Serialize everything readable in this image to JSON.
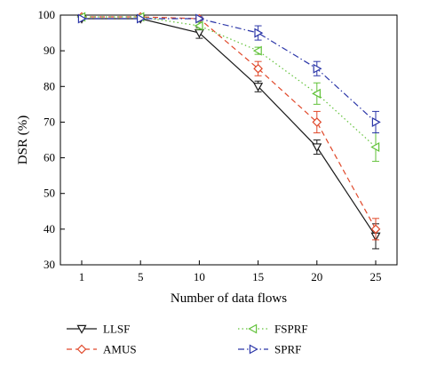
{
  "chart_data": {
    "type": "line",
    "xlabel": "Number of data flows",
    "ylabel": "DSR (%)",
    "categories": [
      "1",
      "5",
      "10",
      "15",
      "20",
      "25"
    ],
    "ylim": [
      30,
      100
    ],
    "yticks": [
      30,
      40,
      50,
      60,
      70,
      80,
      90,
      100
    ],
    "grid": false,
    "legend_placement": "bottom",
    "series": [
      {
        "name": "LLSF",
        "color": "#1a1a1a",
        "dash": "solid",
        "marker": "triangle-down",
        "values": [
          99,
          99,
          95,
          80,
          63,
          38
        ],
        "errors": [
          0,
          0,
          1.5,
          1.5,
          2,
          3.5
        ]
      },
      {
        "name": "AMUS",
        "color": "#e0482a",
        "dash": "dashed",
        "marker": "diamond",
        "values": [
          99.5,
          99.5,
          99,
          85,
          70,
          40
        ],
        "errors": [
          0,
          0,
          0.5,
          2,
          3,
          3
        ]
      },
      {
        "name": "FSPRF",
        "color": "#62c23a",
        "dash": "dotted",
        "marker": "triangle-left",
        "values": [
          99.5,
          99.5,
          97,
          90,
          78,
          63
        ],
        "errors": [
          0,
          0,
          1,
          1,
          3,
          4
        ]
      },
      {
        "name": "SPRF",
        "color": "#2b36a8",
        "dash": "dashdot",
        "marker": "triangle-right",
        "values": [
          99,
          99,
          99,
          95,
          85,
          70
        ],
        "errors": [
          0,
          0,
          0.5,
          2,
          2,
          3
        ]
      }
    ]
  }
}
